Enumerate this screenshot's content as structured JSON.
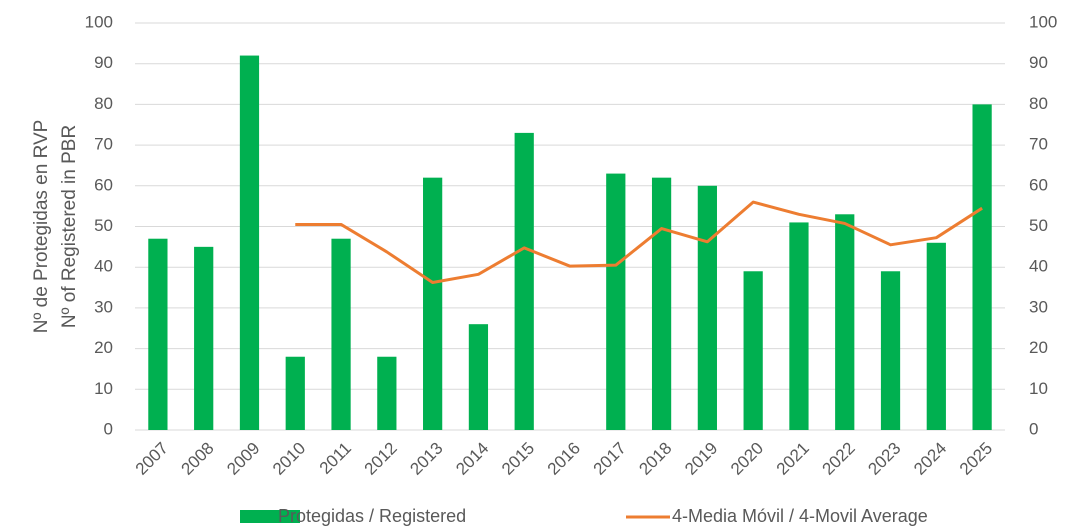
{
  "chart_data": {
    "type": "bar_line",
    "ylabel": [
      "Nº de Protegidas en RVP",
      "Nº of Registered in PBR"
    ],
    "categories": [
      "2007",
      "2008",
      "2009",
      "2010",
      "2011",
      "2012",
      "2013",
      "2014",
      "2015",
      "2016",
      "2017",
      "2018",
      "2019",
      "2020",
      "2021",
      "2022",
      "2023",
      "2024",
      "2025"
    ],
    "series": [
      {
        "name": "Protegidas / Registered",
        "type": "bar",
        "color": "#00b050",
        "values": [
          47,
          45,
          92,
          18,
          47,
          18,
          62,
          26,
          73,
          0,
          63,
          62,
          60,
          39,
          51,
          53,
          39,
          46,
          80
        ]
      },
      {
        "name": "4-Media Móvil / 4-Movil Average",
        "type": "line",
        "color": "#ed7d31",
        "axis": "y2",
        "values": [
          null,
          null,
          null,
          50.5,
          50.5,
          43.75,
          36.25,
          38.25,
          44.75,
          40.25,
          40.5,
          49.5,
          46.25,
          56,
          53,
          50.75,
          45.5,
          47.25,
          54.5
        ]
      }
    ],
    "ylim": [
      0,
      100
    ],
    "yticks": [
      0,
      10,
      20,
      30,
      40,
      50,
      60,
      70,
      80,
      90,
      100
    ],
    "y2lim": [
      0,
      100
    ],
    "y2ticks": [
      0,
      10,
      20,
      30,
      40,
      50,
      60,
      70,
      80,
      90,
      100
    ],
    "grid": true,
    "legend": "bottom"
  }
}
